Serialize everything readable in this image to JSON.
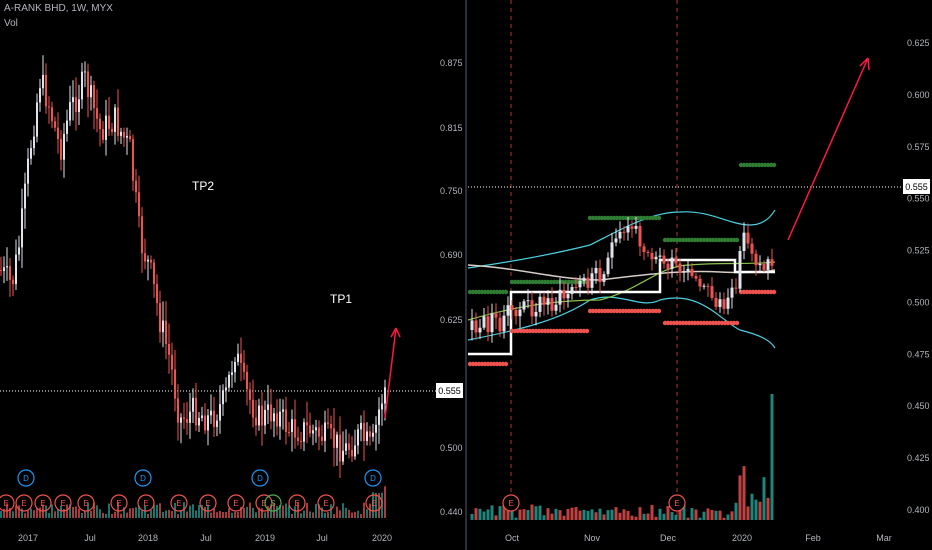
{
  "header": {
    "symbol": "A-RANK BHD, 1W, MYX",
    "volume_label": "Vol"
  },
  "colors": {
    "up": "#e0e3eb",
    "down": "#ef5350",
    "vol_up": "#26a69a",
    "vol_down": "#ef5350",
    "event_E": "#ef5350",
    "event_D": "#2196f3",
    "event_S": "#4caf50",
    "band": "#4dd0e1",
    "ma": "#d7ccc8",
    "ma2": "#8bc34a",
    "arrow": "#ff1744"
  },
  "chart_data": [
    {
      "type": "candlestick",
      "title": "A-RANK BHD, 1W, MYX",
      "x_ticks": [
        "2017",
        "Jul",
        "2018",
        "Jul",
        "2019",
        "Jul",
        "2020"
      ],
      "y_ticks": [
        "0.875",
        "0.815",
        "0.750",
        "0.690",
        "0.625",
        "0.555",
        "0.500",
        "0.440"
      ],
      "ylim": [
        0.44,
        0.88
      ],
      "last_price": "0.555",
      "annotations": [
        "TP2",
        "TP1"
      ],
      "events_bottom": [
        "E",
        "E",
        "E",
        "E",
        "E",
        "E",
        "E",
        "E",
        "E",
        "E",
        "E",
        "S",
        "E",
        "E",
        "E"
      ],
      "events_top": [
        "D",
        "D",
        "D",
        "D"
      ],
      "series": [
        {
          "name": "Vol"
        }
      ]
    },
    {
      "type": "candlestick",
      "x_ticks": [
        "Oct",
        "Nov",
        "Dec",
        "2020",
        "Feb",
        "Mar"
      ],
      "y_ticks": [
        "0.625",
        "0.600",
        "0.575",
        "0.550",
        "0.525",
        "0.500",
        "0.475",
        "0.450",
        "0.425",
        "0.400"
      ],
      "ylim": [
        0.4,
        0.63
      ],
      "last_price": "0.555",
      "events_bottom": [
        "E",
        "E"
      ]
    }
  ]
}
